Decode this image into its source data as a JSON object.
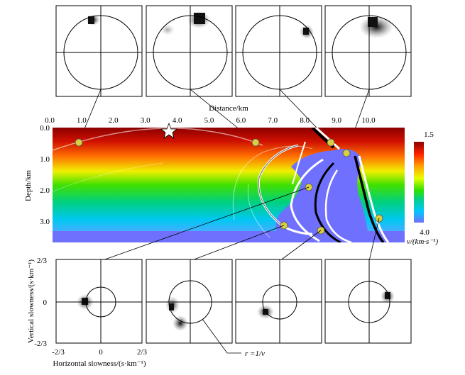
{
  "top_axis": {
    "label": "Distance/km",
    "ticks": [
      "0.0",
      "1.0",
      "2.0",
      "3.0",
      "4.0",
      "5.0",
      "6.0",
      "7.0",
      "8.0",
      "9.0",
      "10.0"
    ]
  },
  "left_axis": {
    "label": "Depth/km",
    "ticks": [
      "0.0",
      "1.0",
      "2.0",
      "3.0"
    ]
  },
  "colorbar": {
    "max_label": "1.5",
    "min_label": "4.0",
    "unit_label": "v/(km·s⁻¹)",
    "colors": [
      "#8b0000",
      "#ff3000",
      "#ffa000",
      "#e8ff00",
      "#30e000",
      "#00d090",
      "#00c8ff",
      "#7070ff"
    ]
  },
  "slowness_axes": {
    "y_label": "Vertical slowness/(s·km⁻¹)",
    "x_label": "Horizontal slowness/(s·km⁻¹)",
    "y_ticks": [
      "2/3",
      "0",
      "-2/3"
    ],
    "x_ticks": [
      "-2/3",
      "0",
      "2/3"
    ]
  },
  "circle_annotation": "r =1/v",
  "top_panels": [
    {
      "blob": "upper-left"
    },
    {
      "blob": "top-center"
    },
    {
      "blob": "right"
    },
    {
      "blob": "upper-right"
    }
  ],
  "bottom_panels": [
    {
      "blob": "left"
    },
    {
      "blob": "lower-left"
    },
    {
      "blob": "lower-left"
    },
    {
      "blob": "right"
    }
  ],
  "source_marker": "star",
  "probe_points_km": [
    {
      "x": 0.85,
      "z": 0.45
    },
    {
      "x": 6.3,
      "z": 0.45
    },
    {
      "x": 8.6,
      "z": 0.45
    },
    {
      "x": 9.2,
      "z": 0.72
    },
    {
      "x": 7.9,
      "z": 1.8
    },
    {
      "x": 7.1,
      "z": 3.0
    },
    {
      "x": 8.4,
      "z": 3.1
    },
    {
      "x": 10.2,
      "z": 2.8
    }
  ]
}
